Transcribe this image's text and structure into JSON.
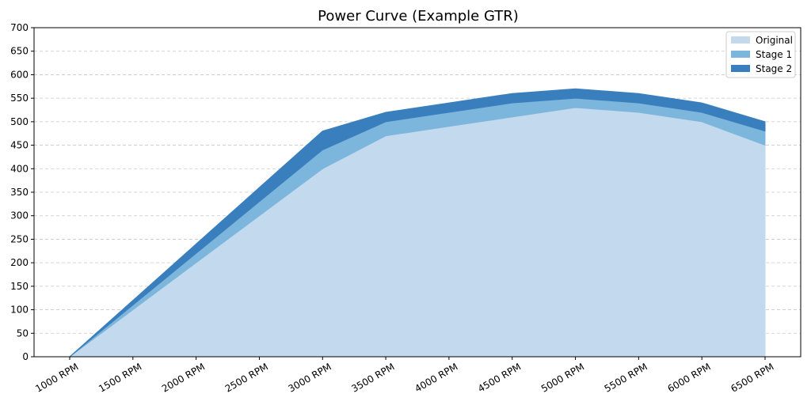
{
  "chart_data": {
    "type": "area",
    "stacked": true,
    "title": "Power Curve (Example GTR)",
    "xlabel": "",
    "ylabel": "",
    "categories": [
      "1000 RPM",
      "1500 RPM",
      "2000 RPM",
      "2500 RPM",
      "3000 RPM",
      "3500 RPM",
      "4000 RPM",
      "4500 RPM",
      "5000 RPM",
      "5500 RPM",
      "6000 RPM",
      "6500 RPM"
    ],
    "ylim": [
      0,
      700
    ],
    "yticks": [
      0,
      50,
      100,
      150,
      200,
      250,
      300,
      350,
      400,
      450,
      500,
      550,
      600,
      650,
      700
    ],
    "grid": "y",
    "legend_position": "top-right",
    "series": [
      {
        "name": "Original",
        "color": "#c3d9ee",
        "values": [
          0,
          100,
          200,
          300,
          400,
          470,
          490,
          510,
          530,
          520,
          500,
          450
        ]
      },
      {
        "name": "Stage 1",
        "color": "#7db6dc",
        "values": [
          0,
          10,
          20,
          30,
          40,
          30,
          30,
          30,
          20,
          20,
          20,
          30
        ]
      },
      {
        "name": "Stage 2",
        "color": "#3a7fbd",
        "values": [
          0,
          10,
          20,
          30,
          40,
          20,
          20,
          20,
          20,
          20,
          20,
          20
        ]
      }
    ]
  }
}
